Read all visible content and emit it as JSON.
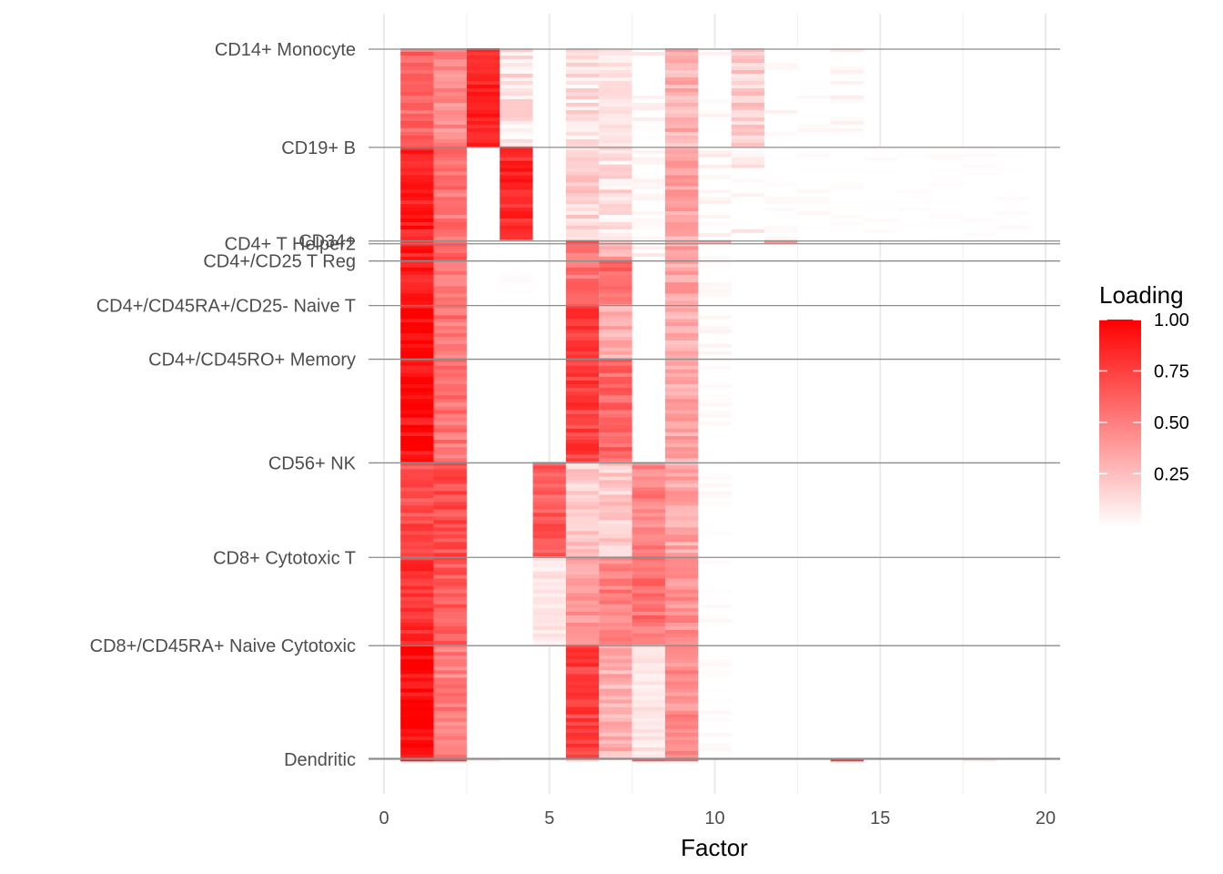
{
  "chart_data": {
    "type": "heatmap",
    "title": "",
    "xlabel": "Factor",
    "ylabel": "",
    "xlim": [
      0,
      20
    ],
    "x_ticks": [
      0,
      5,
      10,
      15,
      20
    ],
    "x_tick_labels": [
      "0",
      "5",
      "10",
      "15",
      "20"
    ],
    "factors": [
      1,
      2,
      3,
      4,
      5,
      6,
      7,
      8,
      9,
      10,
      11,
      12,
      13,
      14,
      15,
      16,
      17,
      18,
      19
    ],
    "grid": true,
    "legend": {
      "title": "Loading",
      "position": "right",
      "ticks": [
        1.0,
        0.75,
        0.5,
        0.25
      ],
      "tick_labels": [
        "1.00",
        "0.75",
        "0.50",
        "0.25"
      ],
      "low_color": "#ffffff",
      "high_color": "#ff0000"
    },
    "groups": [
      {
        "label": "CD14+ Monocyte",
        "loadings": [
          0.6,
          0.45,
          0.85,
          0.12,
          0.0,
          0.12,
          0.1,
          0.05,
          0.3,
          0.03,
          0.2,
          0.03,
          0.02,
          0.05,
          0.0,
          0.0,
          0.0,
          0.0,
          0.0
        ]
      },
      {
        "label": "CD19+ B",
        "loadings": [
          0.88,
          0.55,
          0.0,
          0.85,
          0.0,
          0.18,
          0.12,
          0.03,
          0.35,
          0.05,
          0.08,
          0.02,
          0.02,
          0.01,
          0.01,
          0.01,
          0.01,
          0.01,
          0.01
        ]
      },
      {
        "label": "CD34+",
        "loadings": [
          0.85,
          0.6,
          0.0,
          0.02,
          0.0,
          0.65,
          0.3,
          0.0,
          0.35,
          0.4,
          0.02,
          0.5,
          0.02,
          0.0,
          0.0,
          0.0,
          0.0,
          0.0,
          0.0
        ]
      },
      {
        "label": "CD4+ T Helper2",
        "loadings": [
          0.88,
          0.6,
          0.0,
          0.0,
          0.0,
          0.5,
          0.35,
          0.05,
          0.35,
          0.02,
          0.0,
          0.0,
          0.0,
          0.0,
          0.0,
          0.0,
          0.0,
          0.0,
          0.0
        ]
      },
      {
        "label": "CD4+/CD25 T Reg",
        "loadings": [
          0.9,
          0.55,
          0.0,
          0.02,
          0.0,
          0.55,
          0.6,
          0.0,
          0.35,
          0.02,
          0.0,
          0.0,
          0.0,
          0.0,
          0.0,
          0.0,
          0.0,
          0.0,
          0.0
        ]
      },
      {
        "label": "CD4+/CD45RA+/CD25- Naive T",
        "loadings": [
          0.95,
          0.55,
          0.0,
          0.0,
          0.0,
          0.78,
          0.3,
          0.0,
          0.3,
          0.03,
          0.0,
          0.0,
          0.0,
          0.0,
          0.0,
          0.0,
          0.0,
          0.0,
          0.0
        ]
      },
      {
        "label": "CD4+/CD45RO+ Memory",
        "loadings": [
          0.93,
          0.55,
          0.0,
          0.0,
          0.0,
          0.75,
          0.6,
          0.0,
          0.35,
          0.02,
          0.0,
          0.0,
          0.0,
          0.0,
          0.0,
          0.0,
          0.0,
          0.0,
          0.0
        ]
      },
      {
        "label": "CD56+ NK",
        "loadings": [
          0.7,
          0.7,
          0.0,
          0.0,
          0.65,
          0.2,
          0.2,
          0.5,
          0.35,
          0.02,
          0.0,
          0.0,
          0.0,
          0.0,
          0.0,
          0.0,
          0.0,
          0.0,
          0.0
        ]
      },
      {
        "label": "CD8+ Cytotoxic T",
        "loadings": [
          0.8,
          0.65,
          0.0,
          0.0,
          0.1,
          0.4,
          0.5,
          0.55,
          0.45,
          0.02,
          0.0,
          0.0,
          0.0,
          0.0,
          0.0,
          0.0,
          0.0,
          0.0,
          0.0
        ]
      },
      {
        "label": "CD8+/CD45RA+ Naive Cytotoxic",
        "loadings": [
          0.95,
          0.5,
          0.0,
          0.0,
          0.0,
          0.75,
          0.3,
          0.1,
          0.45,
          0.02,
          0.0,
          0.0,
          0.0,
          0.0,
          0.0,
          0.0,
          0.0,
          0.0,
          0.0
        ]
      },
      {
        "label": "Dendritic",
        "loadings": [
          0.85,
          0.7,
          0.1,
          0.05,
          0.0,
          0.15,
          0.12,
          0.6,
          0.6,
          0.0,
          0.05,
          0.0,
          0.0,
          0.8,
          0.0,
          0.0,
          0.0,
          0.1,
          0.0
        ]
      }
    ]
  }
}
